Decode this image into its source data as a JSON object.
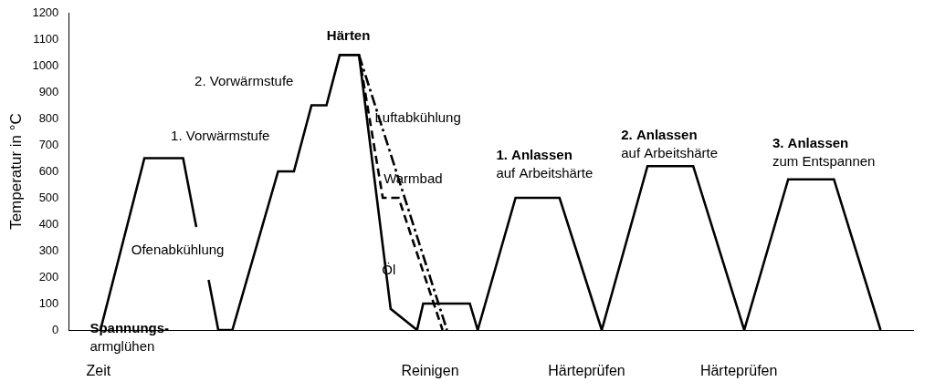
{
  "chart_data": {
    "type": "line",
    "ylabel": "Temperatur in °C",
    "xlabel": "Zeit",
    "xlim": [
      0,
      960
    ],
    "ylim": [
      0,
      1200
    ],
    "yticks": [
      0,
      100,
      200,
      300,
      400,
      500,
      600,
      700,
      800,
      900,
      1000,
      1100,
      1200
    ],
    "grid": false,
    "tick_labels": "y",
    "color": "#000000",
    "series": [
      {
        "x": [
          36,
          86,
          130,
          145,
          null,
          159,
          170,
          186,
          238,
          256,
          276,
          293,
          308,
          330,
          366,
          396,
          403,
          456,
          465,
          508,
          558,
          606,
          658,
          710,
          768,
          818,
          870,
          923
        ],
        "values": [
          0,
          650,
          650,
          390,
          null,
          190,
          0,
          0,
          600,
          600,
          850,
          850,
          1040,
          1040,
          80,
          0,
          100,
          100,
          0,
          500,
          500,
          0,
          620,
          620,
          0,
          570,
          570,
          0
        ],
        "line_style": "solid"
      },
      {
        "name": "Luftabkühlung",
        "x": [
          330,
          430
        ],
        "values": [
          1040,
          0
        ],
        "line_style": "dashdot"
      },
      {
        "name": "Warmbad",
        "x": [
          330,
          357,
          375,
          425
        ],
        "values": [
          1040,
          500,
          500,
          0
        ],
        "line_style": "dashed"
      }
    ],
    "annotations": [
      [
        "Spannungs-",
        "armglühen"
      ],
      [
        "Ofenabkühlung"
      ],
      [
        "1. Vorwärmstufe"
      ],
      [
        "2. Vorwärmstufe"
      ],
      [
        "Härten"
      ],
      [
        "Öl"
      ],
      [
        "1. Anlassen",
        "auf Arbeitshärte"
      ],
      [
        "2. Anlassen",
        "auf Arbeitshärte"
      ],
      [
        "3. Anlassen",
        "zum Entspannen"
      ]
    ],
    "bottom_labels": [
      "Reinigen",
      "Härteprüfen",
      "Härteprüfen"
    ]
  }
}
